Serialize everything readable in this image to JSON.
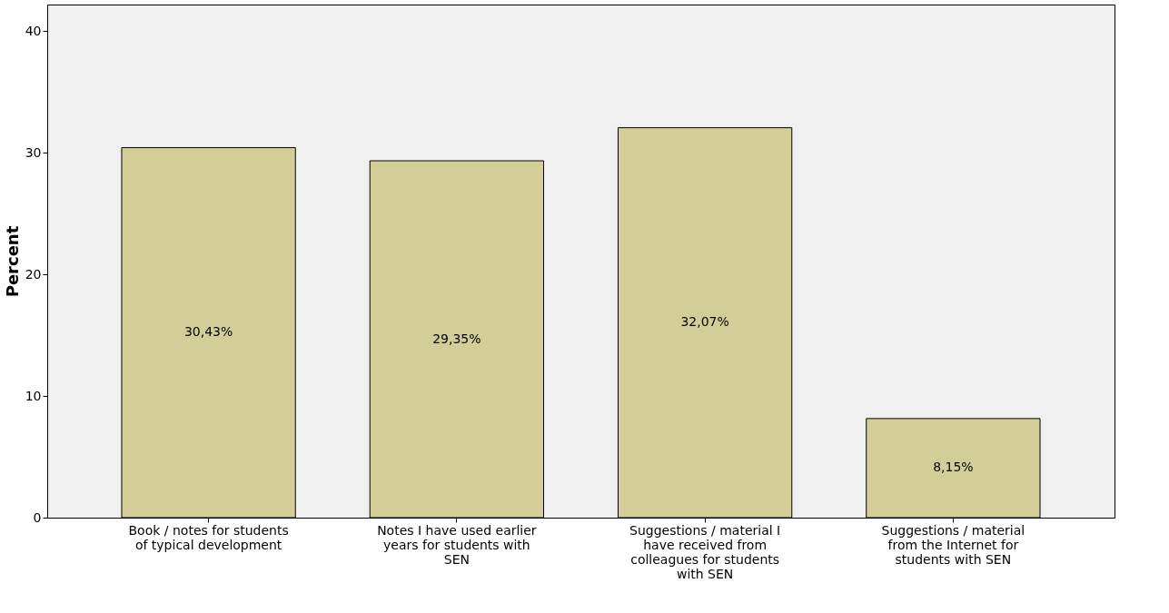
{
  "chart_data": {
    "type": "bar",
    "ylabel": "Percent",
    "categories": [
      "Book / notes for students of typical development",
      "Notes I have used earlier years for students with SEN",
      "Suggestions / material I have received from colleagues for students with SEN",
      "Suggestions / material from the Internet for students with SEN"
    ],
    "values": [
      30.43,
      29.35,
      32.07,
      8.15
    ],
    "value_labels": [
      "30,43%",
      "29,35%",
      "32,07%",
      "8,15%"
    ],
    "color": "#d3ce97",
    "ylim": [
      0,
      42.2
    ],
    "yticks": [
      0,
      10,
      20,
      30,
      40
    ],
    "grid": false
  }
}
